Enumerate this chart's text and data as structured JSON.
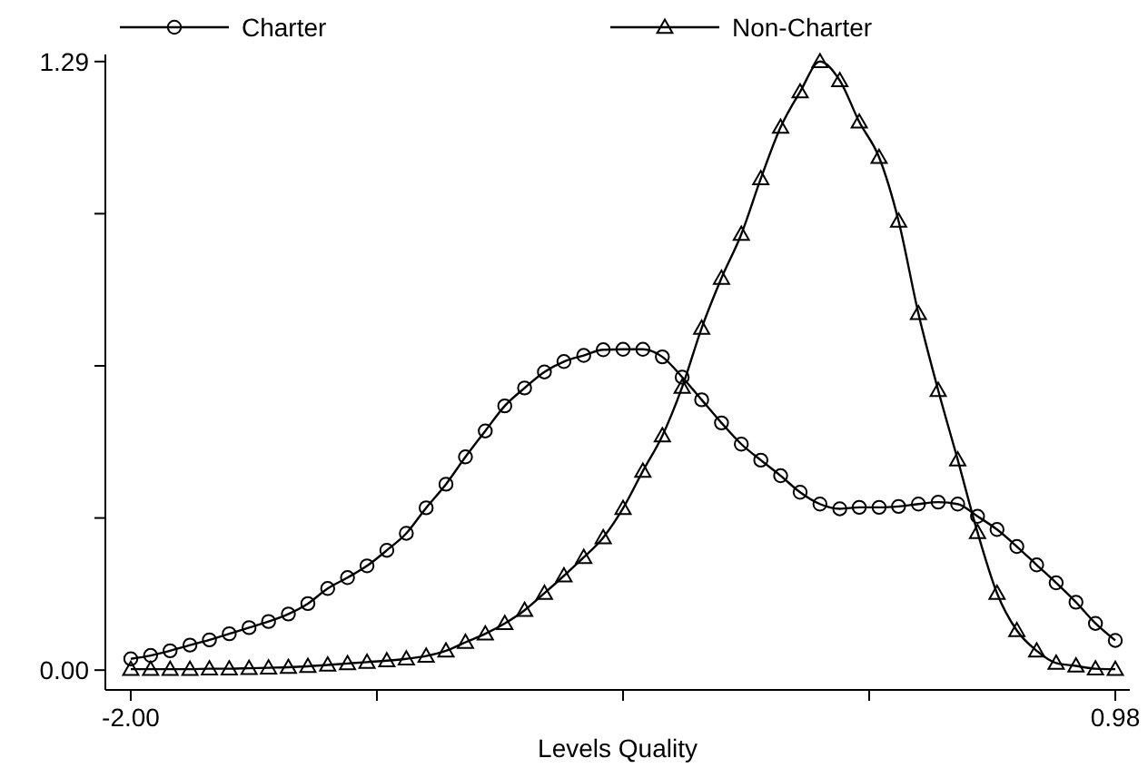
{
  "chart_data": {
    "type": "line",
    "xlabel": "Levels Quality",
    "legend": "top",
    "x": [
      -2.0,
      -1.94,
      -1.881,
      -1.821,
      -1.762,
      -1.702,
      -1.642,
      -1.583,
      -1.523,
      -1.464,
      -1.404,
      -1.344,
      -1.285,
      -1.225,
      -1.166,
      -1.106,
      -1.046,
      -0.987,
      -0.927,
      -0.868,
      -0.808,
      -0.748,
      -0.689,
      -0.629,
      -0.57,
      -0.51,
      -0.45,
      -0.391,
      -0.331,
      -0.272,
      -0.212,
      -0.152,
      -0.093,
      -0.033,
      0.026,
      0.086,
      0.146,
      0.205,
      0.265,
      0.324,
      0.384,
      0.444,
      0.503,
      0.563,
      0.622,
      0.682,
      0.742,
      0.801,
      0.861,
      0.92,
      0.98
    ],
    "series": [
      {
        "name": "Charter",
        "color": "#000000",
        "marker": "circle",
        "values": [
          0.024,
          0.031,
          0.041,
          0.053,
          0.064,
          0.077,
          0.09,
          0.103,
          0.119,
          0.141,
          0.173,
          0.196,
          0.221,
          0.254,
          0.29,
          0.344,
          0.394,
          0.452,
          0.507,
          0.56,
          0.598,
          0.632,
          0.654,
          0.667,
          0.679,
          0.68,
          0.68,
          0.664,
          0.621,
          0.573,
          0.524,
          0.479,
          0.445,
          0.412,
          0.377,
          0.352,
          0.342,
          0.345,
          0.345,
          0.347,
          0.352,
          0.356,
          0.352,
          0.326,
          0.298,
          0.262,
          0.223,
          0.185,
          0.144,
          0.099,
          0.063
        ]
      },
      {
        "name": "Non-Charter",
        "color": "#000000",
        "marker": "triangle",
        "values": [
          0.002,
          0.002,
          0.002,
          0.002,
          0.003,
          0.003,
          0.004,
          0.005,
          0.006,
          0.008,
          0.011,
          0.014,
          0.017,
          0.02,
          0.024,
          0.03,
          0.041,
          0.059,
          0.077,
          0.099,
          0.127,
          0.163,
          0.2,
          0.239,
          0.281,
          0.343,
          0.422,
          0.497,
          0.6,
          0.725,
          0.831,
          0.924,
          1.042,
          1.151,
          1.226,
          1.29,
          1.25,
          1.162,
          1.087,
          0.952,
          0.756,
          0.593,
          0.446,
          0.292,
          0.163,
          0.084,
          0.041,
          0.015,
          0.009,
          0.003,
          0.002
        ]
      }
    ],
    "xlim": [
      -2.077,
      1.024
    ],
    "ylim": [
      -0.042,
      1.305
    ],
    "xticks": [
      {
        "value": -2,
        "label": "-2.00"
      },
      {
        "value": -1.255,
        "label": null
      },
      {
        "value": -0.51,
        "label": null
      },
      {
        "value": 0.235,
        "label": null
      },
      {
        "value": 0.98,
        "label": "0.98"
      }
    ],
    "yticks": [
      {
        "value": 0,
        "label": "0.00"
      },
      {
        "value": 0.3225,
        "label": null
      },
      {
        "value": 0.645,
        "label": null
      },
      {
        "value": 0.9675,
        "label": null
      },
      {
        "value": 1.29,
        "label": "1.29"
      }
    ],
    "grid": false
  }
}
